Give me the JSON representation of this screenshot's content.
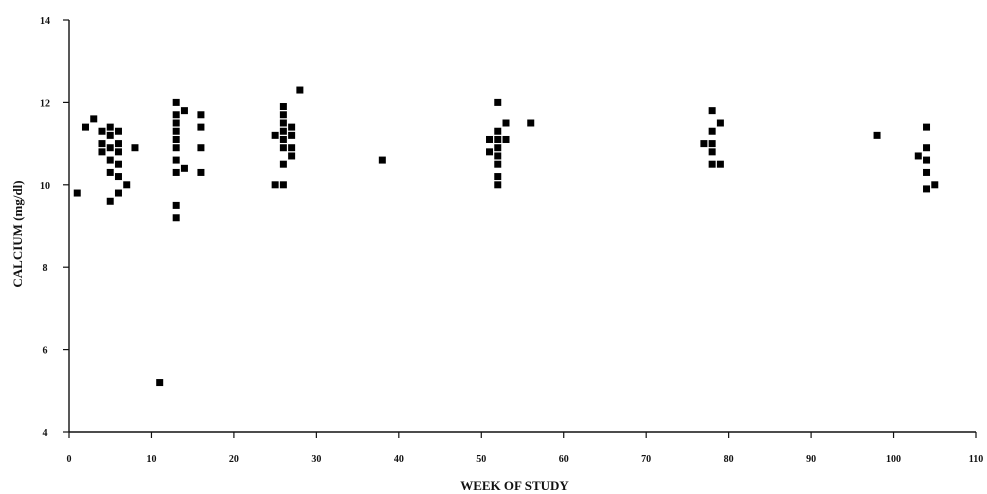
{
  "chart_data": {
    "type": "scatter",
    "title": "",
    "xlabel": "WEEK OF STUDY",
    "ylabel": "CALCIUM (mg/dl)",
    "xlim": [
      0,
      110
    ],
    "ylim": [
      4,
      14
    ],
    "xticks": [
      "0",
      "10",
      "20",
      "30",
      "40",
      "50",
      "60",
      "70",
      "80",
      "90",
      "100",
      "110"
    ],
    "yticks": [
      "4",
      "6",
      "8",
      "10",
      "12",
      "14"
    ],
    "grid": false,
    "color": "#000000",
    "points": [
      {
        "x": 1,
        "y": 9.8
      },
      {
        "x": 2,
        "y": 11.4
      },
      {
        "x": 3,
        "y": 11.6
      },
      {
        "x": 4,
        "y": 11.3
      },
      {
        "x": 4,
        "y": 11.0
      },
      {
        "x": 4,
        "y": 10.8
      },
      {
        "x": 5,
        "y": 11.4
      },
      {
        "x": 5,
        "y": 11.2
      },
      {
        "x": 5,
        "y": 10.9
      },
      {
        "x": 5,
        "y": 10.6
      },
      {
        "x": 5,
        "y": 10.3
      },
      {
        "x": 5,
        "y": 9.6
      },
      {
        "x": 6,
        "y": 11.3
      },
      {
        "x": 6,
        "y": 11.0
      },
      {
        "x": 6,
        "y": 10.8
      },
      {
        "x": 6,
        "y": 10.5
      },
      {
        "x": 6,
        "y": 10.2
      },
      {
        "x": 6,
        "y": 9.8
      },
      {
        "x": 7,
        "y": 10.0
      },
      {
        "x": 8,
        "y": 10.9
      },
      {
        "x": 11,
        "y": 5.2
      },
      {
        "x": 13,
        "y": 12.0
      },
      {
        "x": 13,
        "y": 11.7
      },
      {
        "x": 13,
        "y": 11.5
      },
      {
        "x": 13,
        "y": 11.3
      },
      {
        "x": 13,
        "y": 11.1
      },
      {
        "x": 13,
        "y": 10.9
      },
      {
        "x": 13,
        "y": 10.6
      },
      {
        "x": 13,
        "y": 10.3
      },
      {
        "x": 13,
        "y": 9.5
      },
      {
        "x": 13,
        "y": 9.2
      },
      {
        "x": 14,
        "y": 11.8
      },
      {
        "x": 14,
        "y": 10.4
      },
      {
        "x": 16,
        "y": 11.7
      },
      {
        "x": 16,
        "y": 11.4
      },
      {
        "x": 16,
        "y": 10.9
      },
      {
        "x": 16,
        "y": 10.3
      },
      {
        "x": 25,
        "y": 11.2
      },
      {
        "x": 25,
        "y": 10.0
      },
      {
        "x": 26,
        "y": 11.9
      },
      {
        "x": 26,
        "y": 11.7
      },
      {
        "x": 26,
        "y": 11.5
      },
      {
        "x": 26,
        "y": 11.3
      },
      {
        "x": 26,
        "y": 11.1
      },
      {
        "x": 26,
        "y": 10.9
      },
      {
        "x": 26,
        "y": 10.5
      },
      {
        "x": 26,
        "y": 10.0
      },
      {
        "x": 27,
        "y": 11.4
      },
      {
        "x": 27,
        "y": 11.2
      },
      {
        "x": 27,
        "y": 10.9
      },
      {
        "x": 27,
        "y": 10.7
      },
      {
        "x": 28,
        "y": 12.3
      },
      {
        "x": 38,
        "y": 10.6
      },
      {
        "x": 51,
        "y": 11.1
      },
      {
        "x": 51,
        "y": 10.8
      },
      {
        "x": 52,
        "y": 12.0
      },
      {
        "x": 52,
        "y": 11.3
      },
      {
        "x": 52,
        "y": 11.1
      },
      {
        "x": 52,
        "y": 10.9
      },
      {
        "x": 52,
        "y": 10.7
      },
      {
        "x": 52,
        "y": 10.5
      },
      {
        "x": 52,
        "y": 10.2
      },
      {
        "x": 52,
        "y": 10.0
      },
      {
        "x": 53,
        "y": 11.5
      },
      {
        "x": 53,
        "y": 11.1
      },
      {
        "x": 56,
        "y": 11.5
      },
      {
        "x": 77,
        "y": 11.0
      },
      {
        "x": 78,
        "y": 11.8
      },
      {
        "x": 78,
        "y": 11.3
      },
      {
        "x": 78,
        "y": 11.0
      },
      {
        "x": 78,
        "y": 10.8
      },
      {
        "x": 78,
        "y": 10.5
      },
      {
        "x": 79,
        "y": 11.5
      },
      {
        "x": 79,
        "y": 10.5
      },
      {
        "x": 98,
        "y": 11.2
      },
      {
        "x": 103,
        "y": 10.7
      },
      {
        "x": 104,
        "y": 11.4
      },
      {
        "x": 104,
        "y": 10.9
      },
      {
        "x": 104,
        "y": 10.6
      },
      {
        "x": 104,
        "y": 10.3
      },
      {
        "x": 104,
        "y": 9.9
      },
      {
        "x": 105,
        "y": 10.0
      }
    ]
  }
}
